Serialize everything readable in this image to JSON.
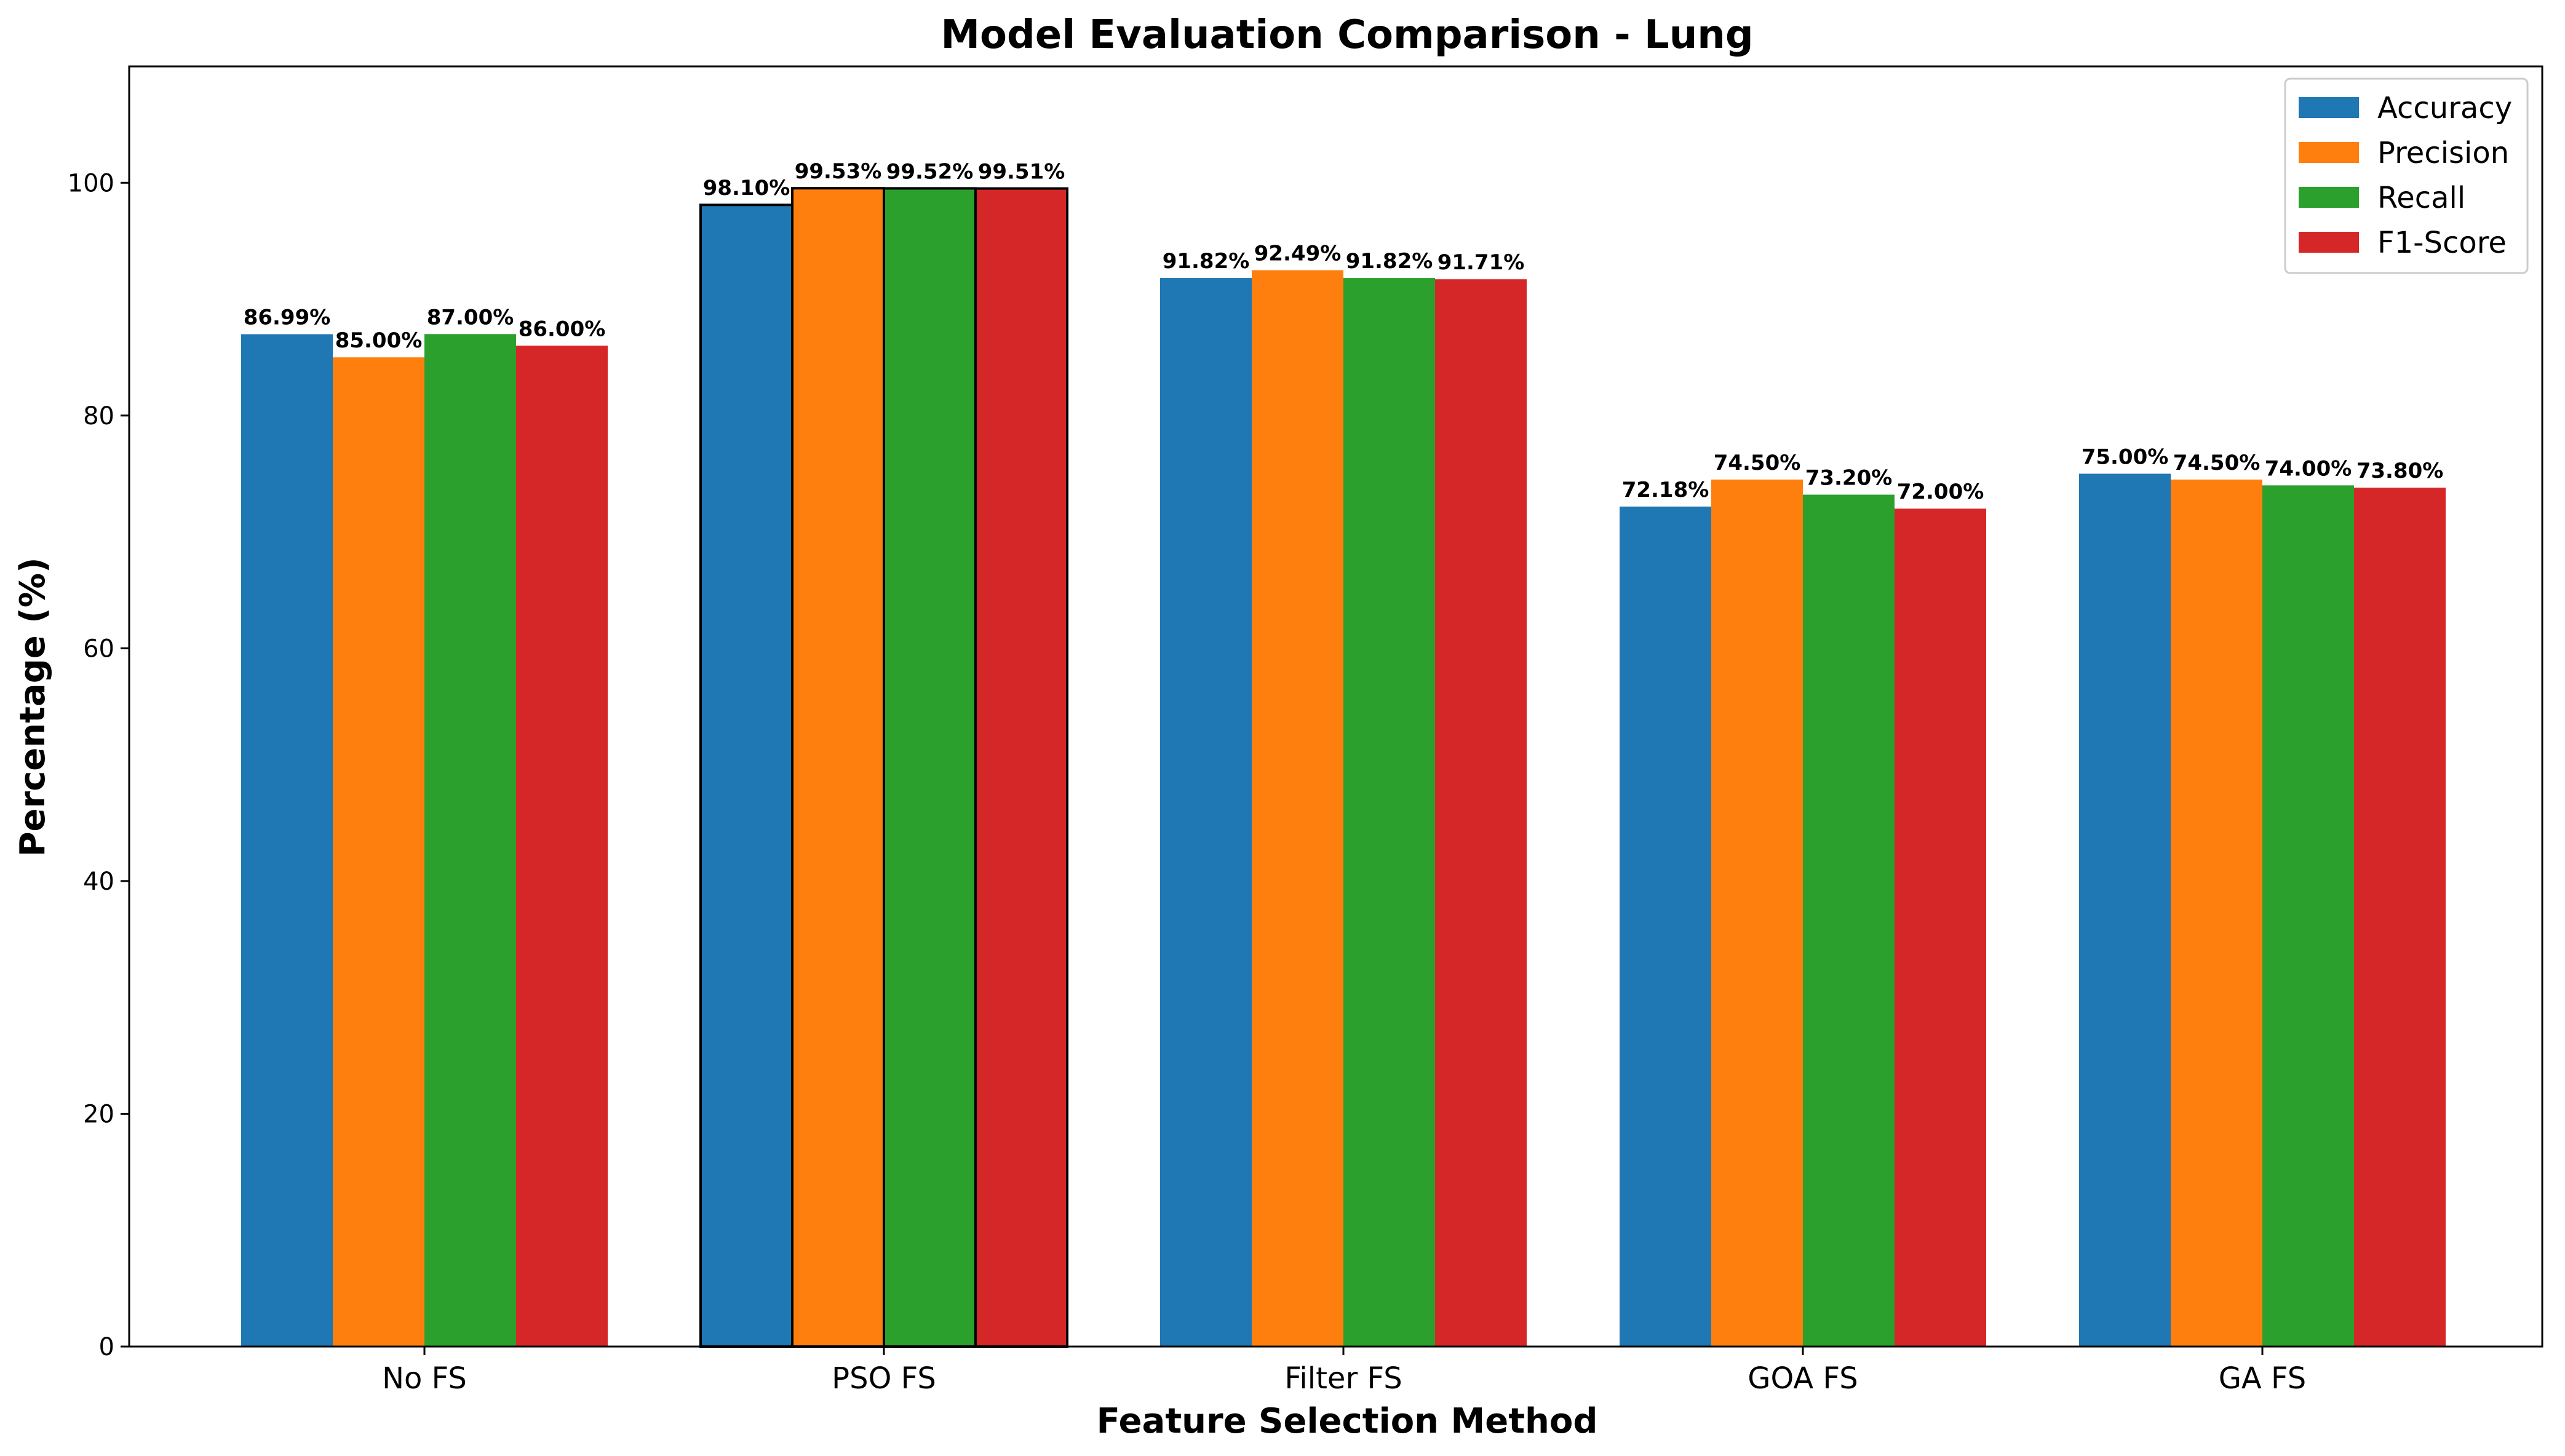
{
  "chart_data": {
    "type": "bar",
    "title": "Model Evaluation Comparison - Lung",
    "xlabel": "Feature Selection Method",
    "ylabel": "Percentage (%)",
    "categories": [
      "No FS",
      "PSO FS",
      "Filter FS",
      "GOA FS",
      "GA FS"
    ],
    "ylim": [
      0,
      110
    ],
    "yticks": [
      0,
      20,
      40,
      60,
      80,
      100
    ],
    "legend_position": "top-right",
    "highlighted_category": "PSO FS",
    "series": [
      {
        "name": "Accuracy",
        "color": "#1f77b4",
        "values": [
          86.99,
          98.1,
          91.82,
          72.18,
          75.0
        ],
        "labels": [
          "86.99%",
          "98.10%",
          "91.82%",
          "72.18%",
          "75.00%"
        ]
      },
      {
        "name": "Precision",
        "color": "#ff7f0e",
        "values": [
          85.0,
          99.53,
          92.49,
          74.5,
          74.5
        ],
        "labels": [
          "85.00%",
          "99.53%",
          "92.49%",
          "74.50%",
          "74.50%"
        ]
      },
      {
        "name": "Recall",
        "color": "#2ca02c",
        "values": [
          87.0,
          99.52,
          91.82,
          73.2,
          74.0
        ],
        "labels": [
          "87.00%",
          "99.52%",
          "91.82%",
          "73.20%",
          "74.00%"
        ]
      },
      {
        "name": "F1-Score",
        "color": "#d62728",
        "values": [
          86.0,
          99.51,
          91.71,
          72.0,
          73.8
        ],
        "labels": [
          "86.00%",
          "99.51%",
          "91.71%",
          "72.00%",
          "73.80%"
        ]
      }
    ]
  }
}
